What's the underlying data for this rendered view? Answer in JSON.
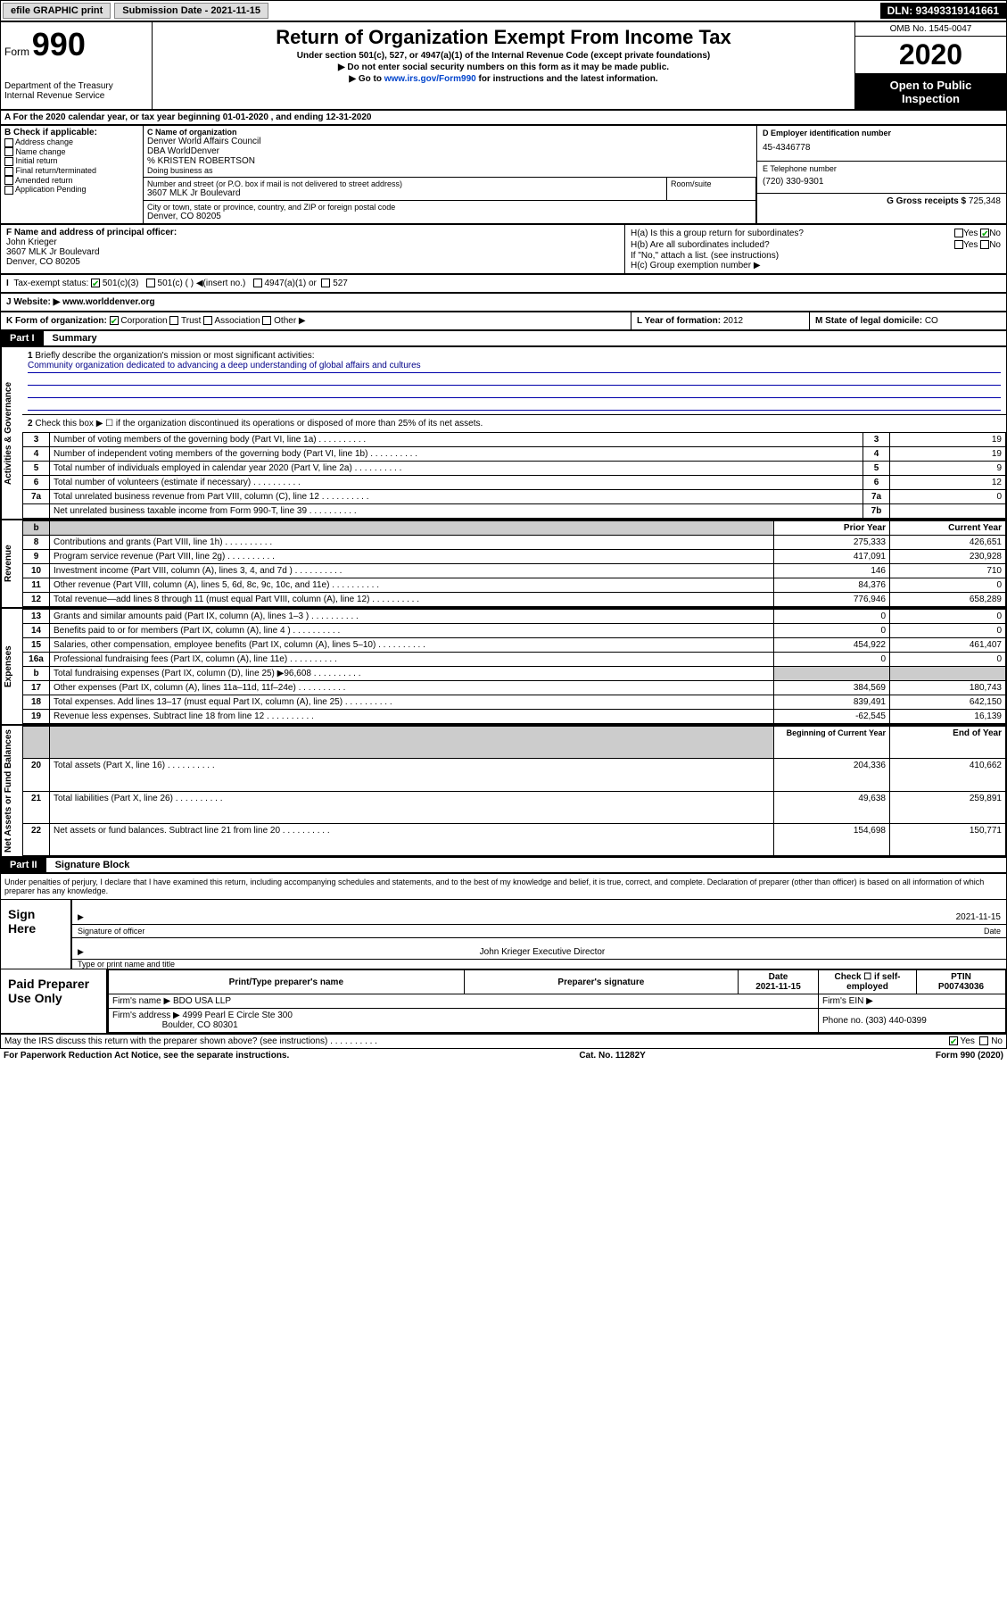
{
  "topBar": {
    "efile": "efile GRAPHIC print",
    "submission": "Submission Date - 2021-11-15",
    "dln": "DLN: 93493319141661"
  },
  "header": {
    "formWord": "Form",
    "formNumber": "990",
    "dept1": "Department of the Treasury",
    "dept2": "Internal Revenue Service",
    "title": "Return of Organization Exempt From Income Tax",
    "subtitle1": "Under section 501(c), 527, or 4947(a)(1) of the Internal Revenue Code (except private foundations)",
    "subtitle2": "▶ Do not enter social security numbers on this form as it may be made public.",
    "subtitle3a": "▶ Go to ",
    "subtitle3link": "www.irs.gov/Form990",
    "subtitle3b": " for instructions and the latest information.",
    "omb": "OMB No. 1545-0047",
    "year": "2020",
    "inspect1": "Open to Public",
    "inspect2": "Inspection"
  },
  "lineA": "A For the 2020 calendar year, or tax year beginning 01-01-2020  , and ending 12-31-2020",
  "sectionB": {
    "label": "B Check if applicable:",
    "opts": [
      "Address change",
      "Name change",
      "Initial return",
      "Final return/terminated",
      "Amended return",
      "Application Pending"
    ]
  },
  "sectionC": {
    "nameLabel": "C Name of organization",
    "name1": "Denver World Affairs Council",
    "name2": "DBA WorldDenver",
    "name3": "% KRISTEN ROBERTSON",
    "dbaLabel": "Doing business as",
    "streetLabel": "Number and street (or P.O. box if mail is not delivered to street address)",
    "roomLabel": "Room/suite",
    "street": "3607 MLK Jr Boulevard",
    "cityLabel": "City or town, state or province, country, and ZIP or foreign postal code",
    "city": "Denver, CO  80205"
  },
  "rightCol": {
    "einLabel": "D Employer identification number",
    "ein": "45-4346778",
    "phoneLabel": "E Telephone number",
    "phone": "(720) 330-9301",
    "grossLabel": "G Gross receipts $",
    "gross": "725,348"
  },
  "sectionF": {
    "label": "F  Name and address of principal officer:",
    "name": "John Krieger",
    "addr1": "3607 MLK Jr Boulevard",
    "addr2": "Denver, CO  80205"
  },
  "sectionH": {
    "ha": "H(a)  Is this a group return for subordinates?",
    "hb": "H(b)  Are all subordinates included?",
    "hbNote": "If \"No,\" attach a list. (see instructions)",
    "hc": "H(c)  Group exemption number ▶",
    "yes": "Yes",
    "no": "No"
  },
  "taxStatus": {
    "label": "Tax-exempt status:",
    "o1": "501(c)(3)",
    "o2": "501(c) (  ) ◀(insert no.)",
    "o3": "4947(a)(1) or",
    "o4": "527"
  },
  "website": {
    "label": "J  Website: ▶",
    "url": "www.worlddenver.org"
  },
  "sectionK": {
    "label": "K Form of organization:",
    "corp": "Corporation",
    "trust": "Trust",
    "assoc": "Association",
    "other": "Other ▶",
    "lLabel": "L Year of formation:",
    "lVal": "2012",
    "mLabel": "M State of legal domicile:",
    "mVal": "CO"
  },
  "part1": {
    "partLabel": "Part I",
    "title": "Summary",
    "sideLabels": {
      "gov": "Activities & Governance",
      "rev": "Revenue",
      "exp": "Expenses",
      "net": "Net Assets or\nFund Balances"
    },
    "q1": "Briefly describe the organization's mission or most significant activities:",
    "mission": "Community organization dedicated to advancing a deep understanding of global affairs and cultures",
    "q2": "Check this box ▶ ☐  if the organization discontinued its operations or disposed of more than 25% of its net assets.",
    "rows": [
      {
        "n": "3",
        "t": "Number of voting members of the governing body (Part VI, line 1a)",
        "rn": "3",
        "v": "19"
      },
      {
        "n": "4",
        "t": "Number of independent voting members of the governing body (Part VI, line 1b)",
        "rn": "4",
        "v": "19"
      },
      {
        "n": "5",
        "t": "Total number of individuals employed in calendar year 2020 (Part V, line 2a)",
        "rn": "5",
        "v": "9"
      },
      {
        "n": "6",
        "t": "Total number of volunteers (estimate if necessary)",
        "rn": "6",
        "v": "12"
      },
      {
        "n": "7a",
        "t": "Total unrelated business revenue from Part VIII, column (C), line 12",
        "rn": "7a",
        "v": "0"
      },
      {
        "n": "",
        "t": "Net unrelated business taxable income from Form 990-T, line 39",
        "rn": "7b",
        "v": ""
      }
    ],
    "yearHeaders": {
      "prior": "Prior Year",
      "current": "Current Year"
    },
    "revRows": [
      {
        "n": "8",
        "t": "Contributions and grants (Part VIII, line 1h)",
        "p": "275,333",
        "c": "426,651"
      },
      {
        "n": "9",
        "t": "Program service revenue (Part VIII, line 2g)",
        "p": "417,091",
        "c": "230,928"
      },
      {
        "n": "10",
        "t": "Investment income (Part VIII, column (A), lines 3, 4, and 7d )",
        "p": "146",
        "c": "710"
      },
      {
        "n": "11",
        "t": "Other revenue (Part VIII, column (A), lines 5, 6d, 8c, 9c, 10c, and 11e)",
        "p": "84,376",
        "c": "0"
      },
      {
        "n": "12",
        "t": "Total revenue—add lines 8 through 11 (must equal Part VIII, column (A), line 12)",
        "p": "776,946",
        "c": "658,289"
      }
    ],
    "expRows": [
      {
        "n": "13",
        "t": "Grants and similar amounts paid (Part IX, column (A), lines 1–3 )",
        "p": "0",
        "c": "0"
      },
      {
        "n": "14",
        "t": "Benefits paid to or for members (Part IX, column (A), line 4 )",
        "p": "0",
        "c": "0"
      },
      {
        "n": "15",
        "t": "Salaries, other compensation, employee benefits (Part IX, column (A), lines 5–10)",
        "p": "454,922",
        "c": "461,407"
      },
      {
        "n": "16a",
        "t": "Professional fundraising fees (Part IX, column (A), line 11e)",
        "p": "0",
        "c": "0"
      },
      {
        "n": "b",
        "t": "Total fundraising expenses (Part IX, column (D), line 25) ▶96,608",
        "p": "",
        "c": "",
        "grey": true
      },
      {
        "n": "17",
        "t": "Other expenses (Part IX, column (A), lines 11a–11d, 11f–24e)",
        "p": "384,569",
        "c": "180,743"
      },
      {
        "n": "18",
        "t": "Total expenses. Add lines 13–17 (must equal Part IX, column (A), line 25)",
        "p": "839,491",
        "c": "642,150"
      },
      {
        "n": "19",
        "t": "Revenue less expenses. Subtract line 18 from line 12",
        "p": "-62,545",
        "c": "16,139"
      }
    ],
    "netHeaders": {
      "begin": "Beginning of Current Year",
      "end": "End of Year"
    },
    "netRows": [
      {
        "n": "20",
        "t": "Total assets (Part X, line 16)",
        "p": "204,336",
        "c": "410,662"
      },
      {
        "n": "21",
        "t": "Total liabilities (Part X, line 26)",
        "p": "49,638",
        "c": "259,891"
      },
      {
        "n": "22",
        "t": "Net assets or fund balances. Subtract line 21 from line 20",
        "p": "154,698",
        "c": "150,771"
      }
    ]
  },
  "part2": {
    "partLabel": "Part II",
    "title": "Signature Block",
    "disclaimer": "Under penalties of perjury, I declare that I have examined this return, including accompanying schedules and statements, and to the best of my knowledge and belief, it is true, correct, and complete. Declaration of preparer (other than officer) is based on all information of which preparer has any knowledge.",
    "signHere": "Sign Here",
    "sigOfficer": "Signature of officer",
    "sigDate": "2021-11-15",
    "sigDateLabel": "Date",
    "sigName": "John Krieger  Executive Director",
    "sigNameLabel": "Type or print name and title",
    "paidPrep": "Paid Preparer Use Only",
    "prepHeaders": {
      "name": "Print/Type preparer's name",
      "sig": "Preparer's signature",
      "date": "Date",
      "check": "Check ☐ if self-employed",
      "ptin": "PTIN"
    },
    "prepDate": "2021-11-15",
    "ptin": "P00743036",
    "firmNameLabel": "Firm's name    ▶",
    "firmName": "BDO USA LLP",
    "firmEinLabel": "Firm's EIN ▶",
    "firmAddrLabel": "Firm's address ▶",
    "firmAddr1": "4999 Pearl E Circle Ste 300",
    "firmAddr2": "Boulder, CO  80301",
    "firmPhoneLabel": "Phone no.",
    "firmPhone": "(303) 440-0399",
    "discuss": "May the IRS discuss this return with the preparer shown above? (see instructions)",
    "yes": "Yes",
    "no": "No"
  },
  "footer": {
    "left": "For Paperwork Reduction Act Notice, see the separate instructions.",
    "mid": "Cat. No. 11282Y",
    "right": "Form 990 (2020)"
  }
}
